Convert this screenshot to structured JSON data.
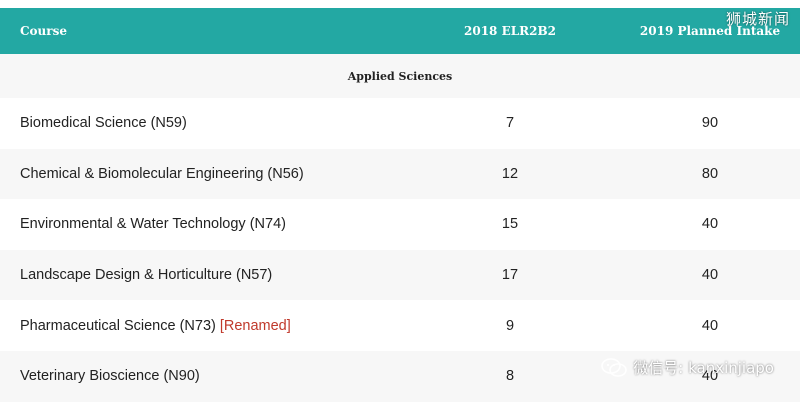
{
  "header": {
    "course": "Course",
    "col_2018": "2018 ELR2B2",
    "col_2019": "2019 Planned Intake"
  },
  "section_title": "Applied Sciences",
  "rows": [
    {
      "course": "Biomedical Science (N59)",
      "tag": "",
      "elr": "7",
      "intake": "90"
    },
    {
      "course": "Chemical & Biomolecular Engineering (N56)",
      "tag": "",
      "elr": "12",
      "intake": "80"
    },
    {
      "course": "Environmental & Water Technology (N74)",
      "tag": "",
      "elr": "15",
      "intake": "40"
    },
    {
      "course": "Landscape Design & Horticulture (N57)",
      "tag": "",
      "elr": "17",
      "intake": "40"
    },
    {
      "course": "Pharmaceutical Science (N73)",
      "tag": "[Renamed]",
      "elr": "9",
      "intake": "40"
    },
    {
      "course": "Veterinary Bioscience (N90)",
      "tag": "",
      "elr": "8",
      "intake": "40"
    }
  ],
  "watermarks": {
    "top": "狮城新闻",
    "bottom": "微信号: kanxinjiapo"
  },
  "colors": {
    "header_bg": "#23a8a3",
    "tag": "#c0392b"
  }
}
